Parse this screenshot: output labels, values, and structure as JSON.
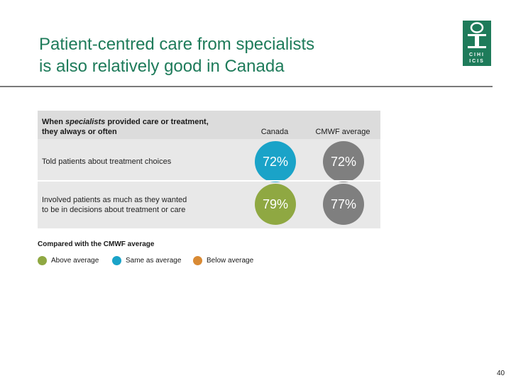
{
  "slide": {
    "title_line1": "Patient-centred care from specialists",
    "title_line2": "is also relatively good in Canada",
    "page_number": "40"
  },
  "table": {
    "question_pre": "When ",
    "question_em": "specialists",
    "question_post": " provided care or treatment,",
    "question_line2": "they always or often",
    "columns": [
      "Canada",
      "CMWF average"
    ],
    "rows": [
      {
        "label_line1": "Told patients about treatment choices",
        "label_line2": "",
        "canada": "72%",
        "cmwf": "72%",
        "canada_status": "same"
      },
      {
        "label_line1": "Involved patients as much as they wanted",
        "label_line2": "to be in decisions about treatment or care",
        "canada": "79%",
        "cmwf": "77%",
        "canada_status": "above"
      }
    ]
  },
  "legend": {
    "title": "Compared with the CMWF average",
    "items": [
      {
        "label": "Above average",
        "color": "#8fa842"
      },
      {
        "label": "Same as average",
        "color": "#1aa3c8"
      },
      {
        "label": "Below average",
        "color": "#d98a34"
      }
    ]
  },
  "colors": {
    "brand": "#1e7b5a",
    "above": "#8fa842",
    "same": "#1aa3c8",
    "below": "#d98a34",
    "cmwf": "#7f7f7f"
  },
  "logo": {
    "letters_row1": "CIHI",
    "letters_row2": "ICIS"
  }
}
